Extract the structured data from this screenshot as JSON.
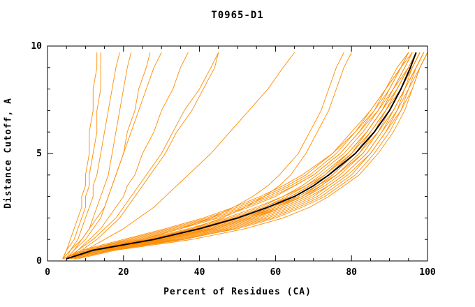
{
  "chart_data": {
    "type": "line",
    "title": "T0965-D1",
    "xlabel": "Percent of Residues (CA)",
    "ylabel": "Distance Cutoff, A",
    "xlim": [
      0,
      100
    ],
    "ylim": [
      0,
      10
    ],
    "xticks": [
      0,
      20,
      40,
      60,
      80,
      100
    ],
    "yticks": [
      0,
      5,
      10
    ],
    "x_minor_step": 5,
    "y_minor_step": 1,
    "grid": false,
    "legend": "none",
    "line_color": "#ff8c00",
    "reference_color": "#000000",
    "y_samples": [
      0.1,
      0.5,
      1,
      1.5,
      2,
      2.5,
      3,
      3.5,
      4,
      5,
      6,
      7,
      8,
      9,
      9.7
    ],
    "orange_series_x": [
      [
        4,
        5,
        6,
        7,
        8,
        9,
        9,
        10,
        10,
        11,
        11,
        12,
        12,
        13,
        13
      ],
      [
        4,
        5,
        7,
        8,
        9,
        10,
        10,
        11,
        11,
        12,
        13,
        13,
        14,
        14,
        14
      ],
      [
        5,
        6,
        8,
        9,
        10,
        11,
        12,
        12,
        13,
        14,
        15,
        16,
        17,
        18,
        19
      ],
      [
        5,
        7,
        9,
        11,
        12,
        13,
        14,
        15,
        16,
        17,
        18,
        19,
        20,
        21,
        22
      ],
      [
        5,
        7,
        10,
        12,
        14,
        15,
        16,
        17,
        18,
        20,
        22,
        24,
        26,
        28,
        30
      ],
      [
        6,
        8,
        11,
        14,
        16,
        18,
        20,
        21,
        23,
        25,
        28,
        30,
        33,
        35,
        37
      ],
      [
        6,
        9,
        13,
        16,
        19,
        21,
        23,
        25,
        27,
        31,
        34,
        38,
        41,
        44,
        45
      ],
      [
        7,
        10,
        15,
        20,
        24,
        28,
        31,
        34,
        37,
        43,
        48,
        53,
        58,
        62,
        65
      ],
      [
        5,
        8,
        12,
        15,
        18,
        20,
        22,
        24,
        26,
        30,
        33,
        36,
        40,
        43,
        45
      ],
      [
        4,
        6,
        9,
        11,
        13,
        15,
        16,
        17,
        18,
        20,
        21,
        23,
        24,
        26,
        27
      ],
      [
        6,
        13,
        27,
        38,
        46,
        52,
        57,
        61,
        64,
        68,
        71,
        74,
        76,
        78,
        80
      ],
      [
        5,
        12,
        25,
        35,
        43,
        49,
        54,
        58,
        61,
        66,
        69,
        72,
        74,
        76,
        78
      ],
      [
        5,
        12,
        26,
        38,
        48,
        56,
        62,
        68,
        72,
        79,
        84,
        88,
        91,
        94,
        96
      ],
      [
        6,
        14,
        30,
        43,
        53,
        60,
        66,
        71,
        75,
        81,
        86,
        90,
        93,
        96,
        98
      ],
      [
        5,
        11,
        24,
        35,
        45,
        53,
        60,
        65,
        70,
        77,
        82,
        87,
        90,
        93,
        95
      ],
      [
        7,
        16,
        33,
        46,
        56,
        63,
        69,
        74,
        78,
        84,
        88,
        91,
        94,
        97,
        99
      ],
      [
        4,
        10,
        22,
        33,
        43,
        51,
        58,
        64,
        69,
        76,
        81,
        86,
        89,
        93,
        95
      ],
      [
        6,
        13,
        28,
        41,
        51,
        59,
        65,
        70,
        74,
        80,
        85,
        89,
        92,
        95,
        97
      ],
      [
        5,
        12,
        27,
        40,
        50,
        58,
        64,
        69,
        73,
        80,
        84,
        88,
        92,
        95,
        97
      ],
      [
        6,
        15,
        31,
        44,
        54,
        61,
        67,
        72,
        76,
        82,
        87,
        90,
        93,
        96,
        98
      ],
      [
        5,
        13,
        29,
        42,
        52,
        60,
        66,
        71,
        75,
        81,
        86,
        89,
        93,
        96,
        98
      ],
      [
        7,
        17,
        35,
        48,
        58,
        65,
        71,
        75,
        79,
        85,
        89,
        92,
        95,
        97,
        99
      ],
      [
        4,
        9,
        20,
        31,
        41,
        49,
        56,
        62,
        67,
        75,
        80,
        85,
        89,
        92,
        95
      ],
      [
        6,
        14,
        30,
        43,
        53,
        61,
        67,
        72,
        76,
        82,
        86,
        90,
        93,
        96,
        98
      ],
      [
        5,
        11,
        25,
        37,
        47,
        55,
        62,
        67,
        71,
        78,
        83,
        87,
        91,
        94,
        96
      ],
      [
        6,
        13,
        28,
        40,
        50,
        58,
        64,
        69,
        74,
        80,
        85,
        89,
        92,
        95,
        97
      ],
      [
        5,
        12,
        26,
        39,
        49,
        57,
        63,
        68,
        73,
        79,
        84,
        88,
        91,
        95,
        97
      ],
      [
        7,
        16,
        34,
        47,
        57,
        64,
        70,
        74,
        78,
        84,
        88,
        92,
        94,
        97,
        99
      ],
      [
        6,
        14,
        31,
        44,
        54,
        62,
        68,
        72,
        76,
        83,
        87,
        91,
        94,
        96,
        98
      ],
      [
        5,
        10,
        23,
        34,
        44,
        52,
        59,
        65,
        70,
        77,
        82,
        86,
        90,
        93,
        96
      ],
      [
        6,
        15,
        32,
        45,
        55,
        62,
        68,
        73,
        77,
        83,
        87,
        91,
        94,
        97,
        99
      ],
      [
        5,
        12,
        27,
        39,
        49,
        57,
        64,
        69,
        73,
        79,
        84,
        88,
        92,
        95,
        97
      ],
      [
        6,
        13,
        29,
        42,
        52,
        59,
        66,
        71,
        75,
        81,
        85,
        89,
        93,
        96,
        98
      ],
      [
        4,
        10,
        21,
        32,
        42,
        50,
        57,
        63,
        68,
        75,
        81,
        85,
        89,
        93,
        95
      ],
      [
        7,
        17,
        36,
        49,
        59,
        66,
        72,
        76,
        80,
        85,
        89,
        93,
        95,
        98,
        100
      ],
      [
        6,
        14,
        30,
        43,
        53,
        60,
        67,
        71,
        76,
        82,
        86,
        90,
        93,
        96,
        98
      ],
      [
        8,
        18,
        38,
        52,
        62,
        69,
        74,
        78,
        82,
        87,
        91,
        94,
        96,
        98,
        100
      ],
      [
        7,
        16,
        35,
        50,
        60,
        67,
        73,
        77,
        81,
        86,
        90,
        93,
        96,
        98,
        100
      ]
    ],
    "reference_x": [
      5,
      12,
      28,
      40,
      50,
      58,
      65,
      70,
      74,
      81,
      86,
      90,
      93,
      95.5,
      97
    ]
  }
}
